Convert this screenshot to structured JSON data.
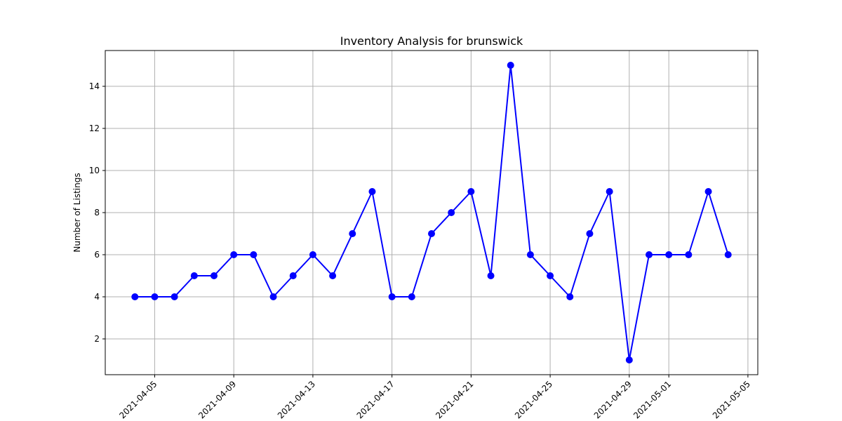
{
  "chart_data": {
    "type": "line",
    "title": "Inventory Analysis for brunswick",
    "xlabel": "",
    "ylabel": "Number of Listings",
    "x_dates": [
      "2021-04-04",
      "2021-04-05",
      "2021-04-06",
      "2021-04-07",
      "2021-04-08",
      "2021-04-09",
      "2021-04-10",
      "2021-04-11",
      "2021-04-12",
      "2021-04-13",
      "2021-04-14",
      "2021-04-15",
      "2021-04-16",
      "2021-04-17",
      "2021-04-18",
      "2021-04-19",
      "2021-04-20",
      "2021-04-21",
      "2021-04-22",
      "2021-04-23",
      "2021-04-24",
      "2021-04-25",
      "2021-04-26",
      "2021-04-27",
      "2021-04-28",
      "2021-04-29",
      "2021-04-30",
      "2021-05-01",
      "2021-05-02",
      "2021-05-03",
      "2021-05-04"
    ],
    "values": [
      4,
      4,
      4,
      5,
      5,
      6,
      6,
      4,
      5,
      6,
      5,
      7,
      9,
      4,
      4,
      7,
      8,
      9,
      5,
      15,
      6,
      5,
      4,
      7,
      9,
      1,
      6,
      6,
      6,
      9,
      6
    ],
    "x_ticks": [
      "2021-04-05",
      "2021-04-09",
      "2021-04-13",
      "2021-04-17",
      "2021-04-21",
      "2021-04-25",
      "2021-04-29",
      "2021-05-01",
      "2021-05-05"
    ],
    "y_ticks": [
      2,
      4,
      6,
      8,
      10,
      12,
      14
    ],
    "xlim": [
      "2021-04-02T12:00",
      "2021-05-05T12:00"
    ],
    "ylim": [
      0.3,
      15.7
    ],
    "grid": true,
    "color": "#0000ff"
  }
}
